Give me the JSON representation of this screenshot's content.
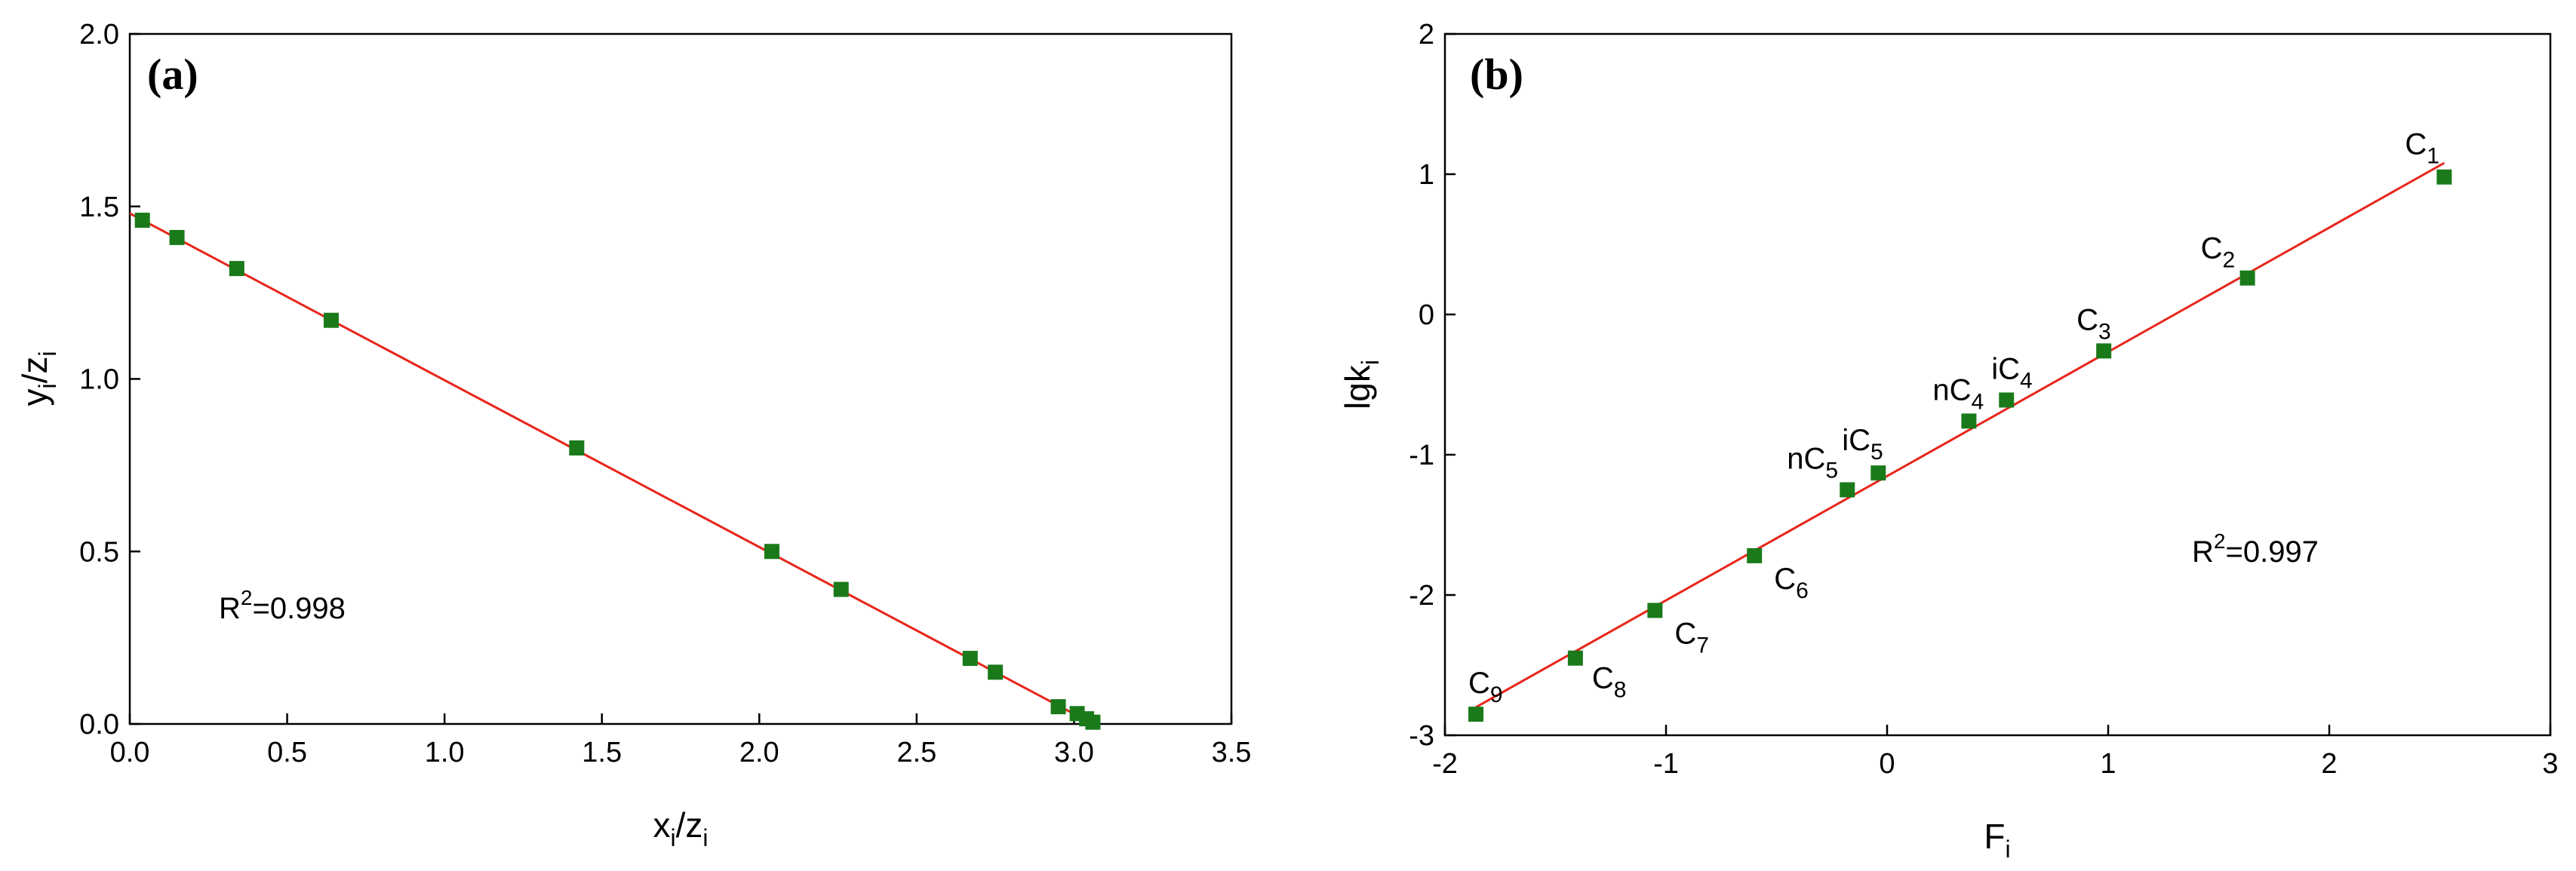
{
  "colors": {
    "marker": "#1a7a1a",
    "fit_line": "#e8251b",
    "axes": "#000000"
  },
  "chart_data": [
    {
      "panel_label": "(a)",
      "type": "scatter",
      "xlabel": {
        "base": "x",
        "sub": "i",
        "slash": "/z",
        "sub2": "i"
      },
      "ylabel": {
        "base": "y",
        "sub": "i",
        "slash": "/z",
        "sub2": "i"
      },
      "xlim": [
        0.0,
        3.5
      ],
      "ylim": [
        0.0,
        2.0
      ],
      "xticks": [
        "0.0",
        "0.5",
        "1.0",
        "1.5",
        "2.0",
        "2.5",
        "3.0",
        "3.5"
      ],
      "yticks": [
        "0.0",
        "0.5",
        "1.0",
        "1.5",
        "2.0"
      ],
      "annotation": {
        "prefix": "R",
        "sup": "2",
        "value": "=0.998"
      },
      "series": [
        {
          "x": [
            0.04,
            0.15,
            0.34,
            0.64,
            1.42,
            2.04,
            2.26,
            2.67,
            2.75,
            2.95,
            3.01,
            3.04,
            3.06
          ],
          "y": [
            1.46,
            1.41,
            1.32,
            1.17,
            0.8,
            0.5,
            0.39,
            0.19,
            0.15,
            0.05,
            0.03,
            0.015,
            0.005
          ]
        }
      ],
      "fit": {
        "x": [
          0.0,
          3.06
        ],
        "y": [
          1.48,
          0.0
        ]
      }
    },
    {
      "panel_label": "(b)",
      "type": "scatter",
      "xlabel": {
        "base": "F",
        "sub": "i"
      },
      "ylabel": {
        "base": "lgk",
        "sub": "i"
      },
      "xlim": [
        -2,
        3
      ],
      "ylim": [
        -3,
        2
      ],
      "xticks": [
        "-2",
        "-1",
        "0",
        "1",
        "2",
        "3"
      ],
      "yticks": [
        "-3",
        "-2",
        "-1",
        "0",
        "1",
        "2"
      ],
      "annotation": {
        "prefix": "R",
        "sup": "2",
        "value": "=0.997"
      },
      "points": [
        {
          "label": "C",
          "sub": "1",
          "x": 2.52,
          "y": 0.98
        },
        {
          "label": "C",
          "sub": "2",
          "x": 1.63,
          "y": 0.26
        },
        {
          "label": "C",
          "sub": "3",
          "x": 0.98,
          "y": -0.26
        },
        {
          "label": "iC",
          "sub": "4",
          "x": 0.54,
          "y": -0.61
        },
        {
          "label": "nC",
          "sub": "4",
          "x": 0.37,
          "y": -0.76
        },
        {
          "label": "iC",
          "sub": "5",
          "x": -0.04,
          "y": -1.13
        },
        {
          "label": "nC",
          "sub": "5",
          "x": -0.18,
          "y": -1.25
        },
        {
          "label": "C",
          "sub": "6",
          "x": -0.6,
          "y": -1.72
        },
        {
          "label": "C",
          "sub": "7",
          "x": -1.05,
          "y": -2.11
        },
        {
          "label": "C",
          "sub": "8",
          "x": -1.41,
          "y": -2.45
        },
        {
          "label": "C",
          "sub": "9",
          "x": -1.86,
          "y": -2.85
        }
      ],
      "fit": {
        "x": [
          -1.86,
          2.52
        ],
        "y": [
          -2.8,
          1.08
        ]
      }
    }
  ]
}
